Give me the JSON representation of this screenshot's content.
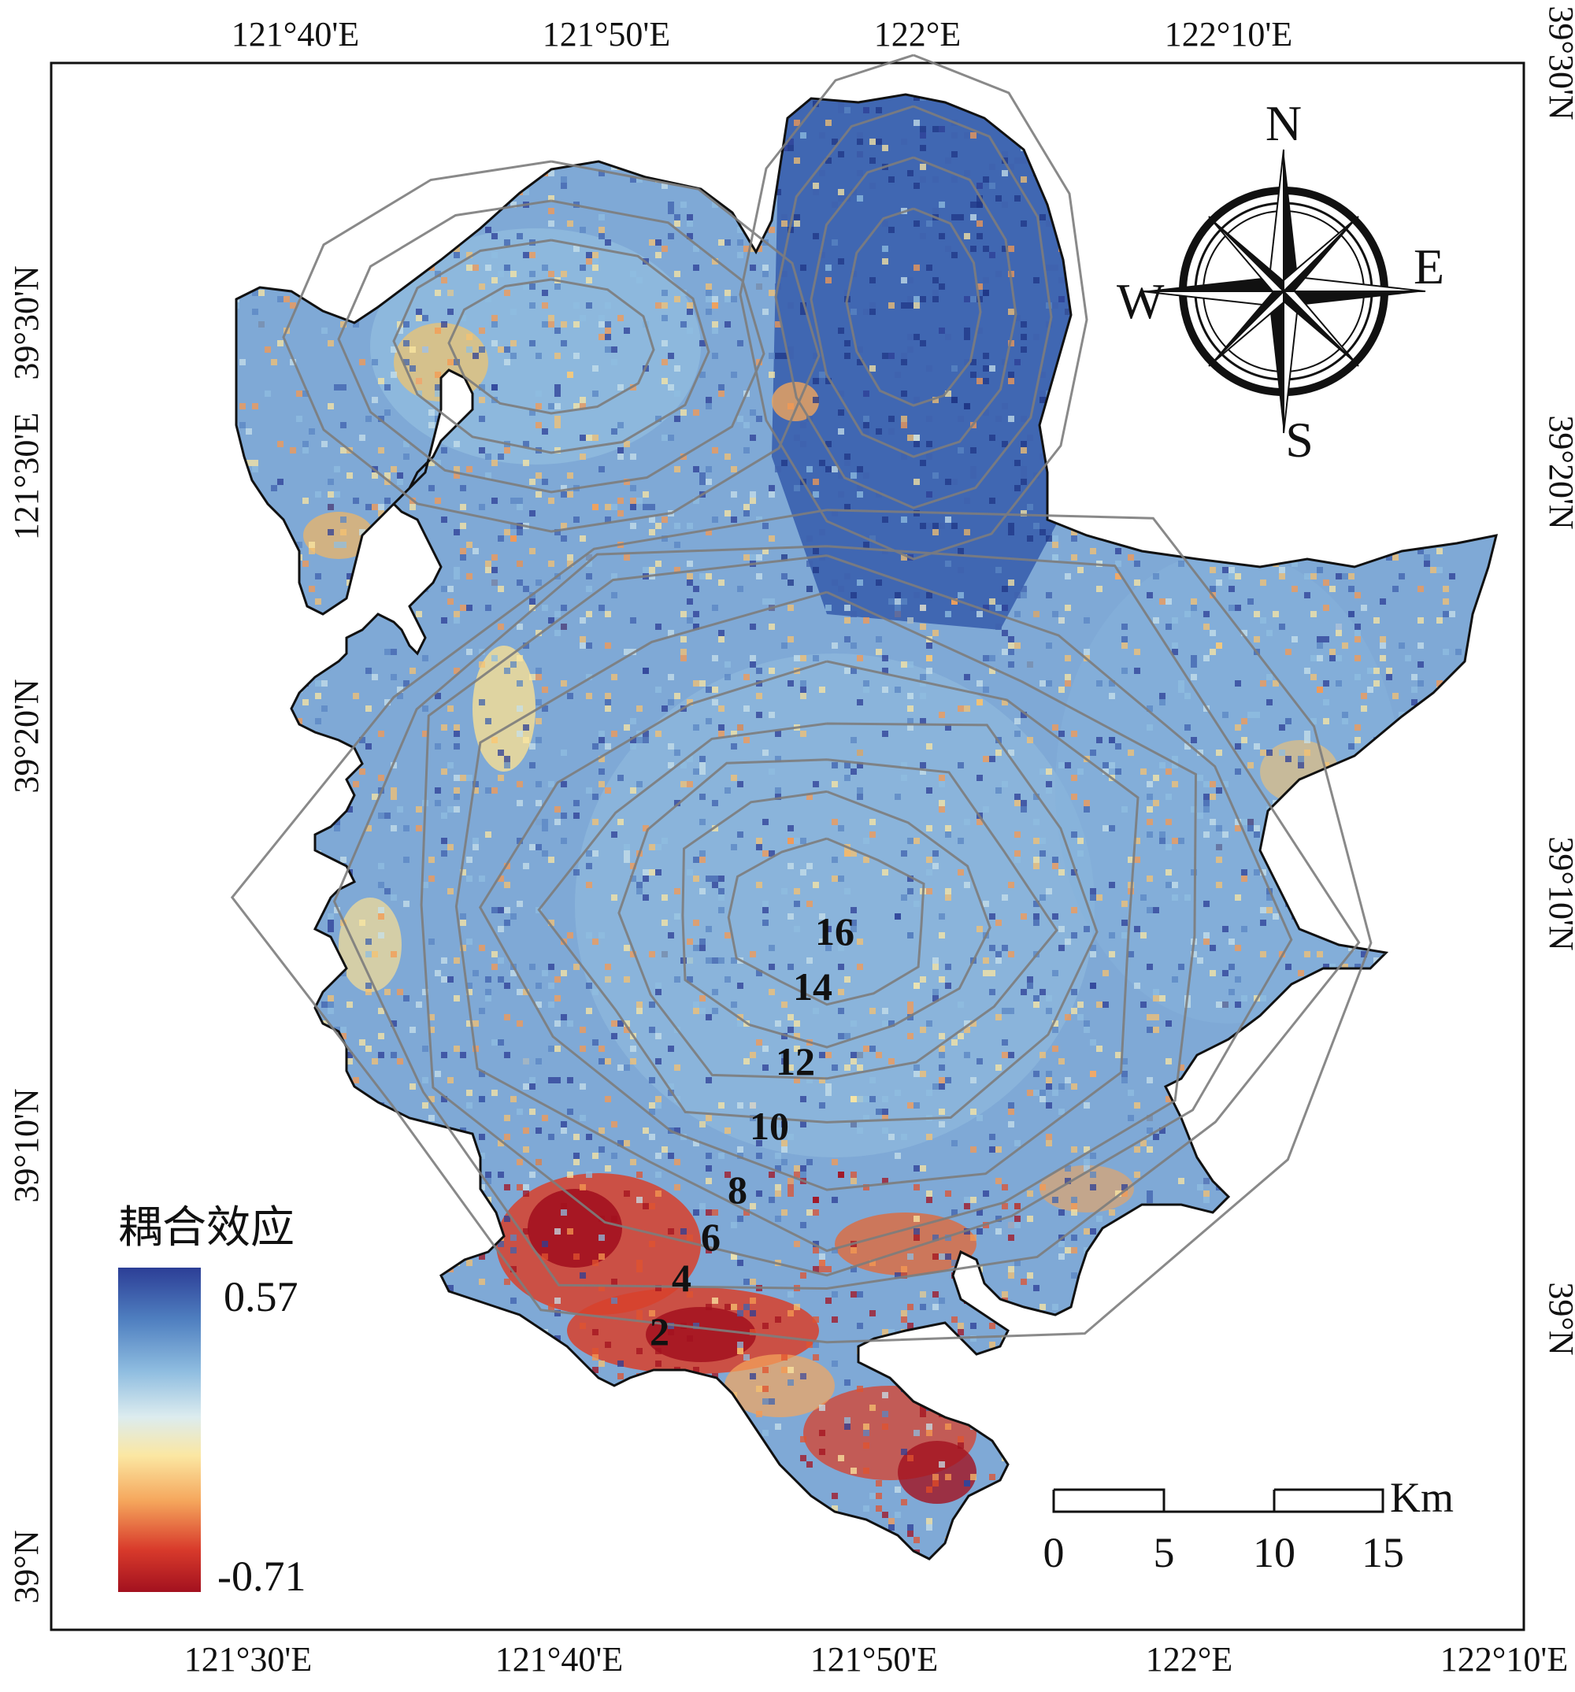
{
  "top_lon_labels": [
    "121°40'E",
    "121°50'E",
    "122°E",
    "122°10'E"
  ],
  "bottom_lon_labels": [
    "121°30'E",
    "121°40'E",
    "121°50'E",
    "122°E",
    "122°10'E"
  ],
  "left_lat_labels": [
    "39°30'N",
    "121°30'E",
    "39°20'N",
    "39°10'N",
    "39°N"
  ],
  "right_lat_labels": [
    "39°30'N",
    "39°20'N",
    "39°10'N",
    "39°N"
  ],
  "contour_labels": [
    "16",
    "14",
    "12",
    "10",
    "8",
    "6",
    "4",
    "2"
  ],
  "legend": {
    "title": "耦合效应",
    "max_label": "0.57",
    "min_label": "-0.71",
    "max_value": 0.57,
    "min_value": -0.71,
    "colors": [
      "#2c3e96",
      "#4f7fc0",
      "#8fbde0",
      "#dcecef",
      "#fbe7a2",
      "#f5a65c",
      "#d83a2b",
      "#a3111f"
    ]
  },
  "compass": {
    "north": "N",
    "south": "S",
    "east": "E",
    "west": "W"
  },
  "scale_bar": {
    "unit": "Km",
    "ticks": [
      "0",
      "5",
      "10",
      "15"
    ]
  }
}
